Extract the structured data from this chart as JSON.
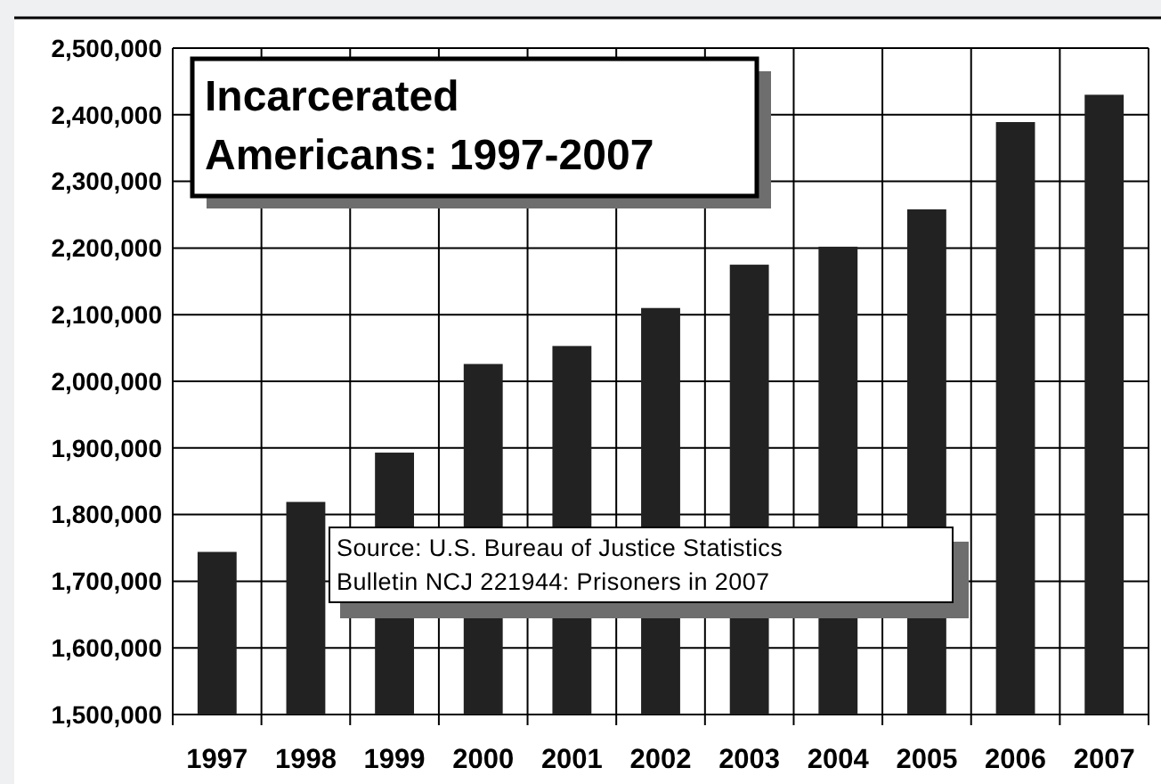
{
  "chart_data": {
    "type": "bar",
    "title": "Incarcerated Americans: 1997-2007",
    "categories": [
      "1997",
      "1998",
      "1999",
      "2000",
      "2001",
      "2002",
      "2003",
      "2004",
      "2005",
      "2006",
      "2007"
    ],
    "values": [
      1744000,
      1819000,
      1893000,
      2026000,
      2053000,
      2110000,
      2175000,
      2202000,
      2258000,
      2389000,
      2430000
    ],
    "color": "#222222",
    "ylim": [
      1500000,
      2500000
    ],
    "yticks": [
      {
        "value": 1500000,
        "label": "1,500,000"
      },
      {
        "value": 1600000,
        "label": "1,600,000"
      },
      {
        "value": 1700000,
        "label": "1,700,000"
      },
      {
        "value": 1800000,
        "label": "1,800,000"
      },
      {
        "value": 1900000,
        "label": "1,900,000"
      },
      {
        "value": 2000000,
        "label": "2,000,000"
      },
      {
        "value": 2100000,
        "label": "2,100,000"
      },
      {
        "value": 2200000,
        "label": "2,200,000"
      },
      {
        "value": 2300000,
        "label": "2,300,000"
      },
      {
        "value": 2400000,
        "label": "2,400,000"
      },
      {
        "value": 2500000,
        "label": "2,500,000"
      }
    ],
    "grid": true,
    "annotations": [
      "Source: U.S. Bureau of Justice Statistics\nBulletin NCJ 221944: Prisoners in 2007"
    ]
  }
}
